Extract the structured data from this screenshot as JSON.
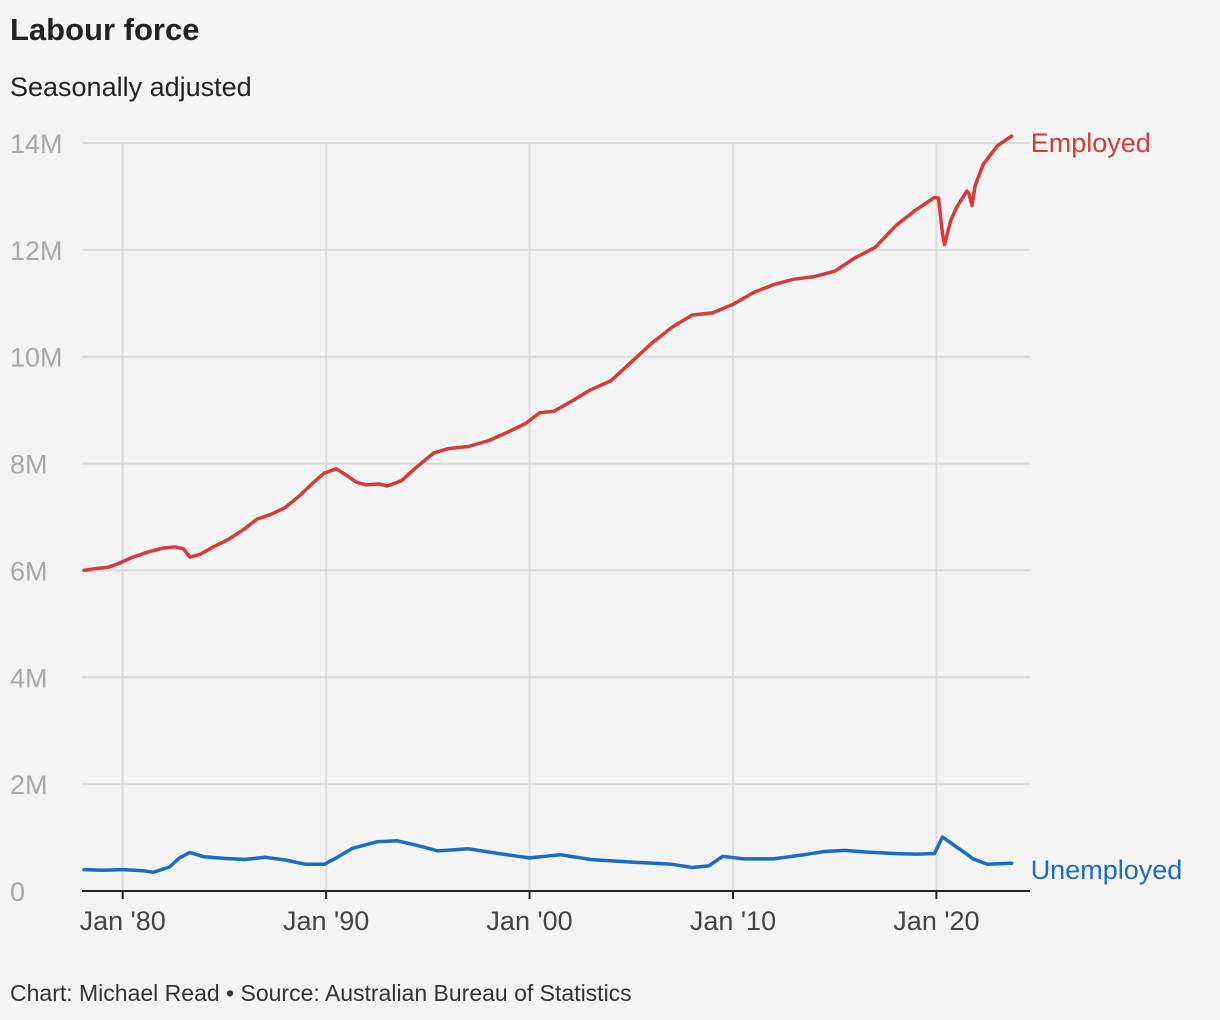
{
  "title": "Labour force",
  "subtitle": "Seasonally adjusted",
  "footer": "Chart: Michael Read • Source: Australian Bureau of Statistics",
  "chart_data": {
    "type": "line",
    "title": "Labour force",
    "subtitle": "Seasonally adjusted",
    "xlabel": "",
    "ylabel": "",
    "xlim": [
      1978.0,
      2024.6
    ],
    "ylim": [
      0,
      14000000
    ],
    "grid": true,
    "x_ticks": [
      {
        "value": 1980,
        "label": "Jan '80"
      },
      {
        "value": 1990,
        "label": "Jan '90"
      },
      {
        "value": 2000,
        "label": "Jan '00"
      },
      {
        "value": 2010,
        "label": "Jan '10"
      },
      {
        "value": 2020,
        "label": "Jan '20"
      }
    ],
    "y_ticks": [
      {
        "value": 0,
        "label": "0"
      },
      {
        "value": 2000000,
        "label": "2M"
      },
      {
        "value": 4000000,
        "label": "4M"
      },
      {
        "value": 6000000,
        "label": "6M"
      },
      {
        "value": 8000000,
        "label": "8M"
      },
      {
        "value": 10000000,
        "label": "10M"
      },
      {
        "value": 12000000,
        "label": "12M"
      },
      {
        "value": 14000000,
        "label": "14M"
      }
    ],
    "legend": "direct labels at line ends (right)",
    "series": [
      {
        "name": "Employed",
        "color": "#d63b35",
        "points": [
          [
            1978.1,
            6000000
          ],
          [
            1978.6,
            6030000
          ],
          [
            1979.3,
            6060000
          ],
          [
            1979.8,
            6130000
          ],
          [
            1980.5,
            6250000
          ],
          [
            1981.3,
            6350000
          ],
          [
            1982.0,
            6420000
          ],
          [
            1982.6,
            6440000
          ],
          [
            1983.0,
            6400000
          ],
          [
            1983.3,
            6250000
          ],
          [
            1983.8,
            6300000
          ],
          [
            1984.5,
            6450000
          ],
          [
            1985.2,
            6580000
          ],
          [
            1986.0,
            6780000
          ],
          [
            1986.6,
            6960000
          ],
          [
            1987.3,
            7050000
          ],
          [
            1988.0,
            7180000
          ],
          [
            1988.7,
            7400000
          ],
          [
            1989.3,
            7620000
          ],
          [
            1989.9,
            7820000
          ],
          [
            1990.5,
            7900000
          ],
          [
            1991.0,
            7780000
          ],
          [
            1991.5,
            7650000
          ],
          [
            1992.0,
            7600000
          ],
          [
            1992.6,
            7620000
          ],
          [
            1993.0,
            7580000
          ],
          [
            1993.7,
            7680000
          ],
          [
            1994.5,
            7950000
          ],
          [
            1995.3,
            8200000
          ],
          [
            1996.0,
            8280000
          ],
          [
            1997.0,
            8320000
          ],
          [
            1998.0,
            8430000
          ],
          [
            1999.0,
            8600000
          ],
          [
            1999.8,
            8750000
          ],
          [
            2000.5,
            8950000
          ],
          [
            2001.2,
            8980000
          ],
          [
            2002.0,
            9150000
          ],
          [
            2003.0,
            9380000
          ],
          [
            2004.0,
            9550000
          ],
          [
            2005.0,
            9900000
          ],
          [
            2006.0,
            10250000
          ],
          [
            2007.0,
            10550000
          ],
          [
            2008.0,
            10780000
          ],
          [
            2009.0,
            10820000
          ],
          [
            2010.0,
            10980000
          ],
          [
            2011.0,
            11200000
          ],
          [
            2012.0,
            11350000
          ],
          [
            2013.0,
            11450000
          ],
          [
            2014.0,
            11500000
          ],
          [
            2015.0,
            11600000
          ],
          [
            2016.0,
            11850000
          ],
          [
            2017.0,
            12050000
          ],
          [
            2018.0,
            12450000
          ],
          [
            2019.0,
            12750000
          ],
          [
            2019.9,
            12980000
          ],
          [
            2020.1,
            12970000
          ],
          [
            2020.3,
            12300000
          ],
          [
            2020.4,
            12100000
          ],
          [
            2020.7,
            12550000
          ],
          [
            2021.0,
            12800000
          ],
          [
            2021.5,
            13100000
          ],
          [
            2021.6,
            13050000
          ],
          [
            2021.75,
            12830000
          ],
          [
            2021.9,
            13200000
          ],
          [
            2022.3,
            13600000
          ],
          [
            2023.0,
            13950000
          ],
          [
            2023.7,
            14130000
          ]
        ]
      },
      {
        "name": "Unemployed",
        "color": "#1a6cc4",
        "points": [
          [
            1978.1,
            400000
          ],
          [
            1979.0,
            390000
          ],
          [
            1980.0,
            400000
          ],
          [
            1981.0,
            380000
          ],
          [
            1981.5,
            350000
          ],
          [
            1982.3,
            450000
          ],
          [
            1982.8,
            620000
          ],
          [
            1983.3,
            720000
          ],
          [
            1984.0,
            640000
          ],
          [
            1985.0,
            610000
          ],
          [
            1986.0,
            590000
          ],
          [
            1987.0,
            630000
          ],
          [
            1988.0,
            580000
          ],
          [
            1989.0,
            500000
          ],
          [
            1989.9,
            500000
          ],
          [
            1990.5,
            620000
          ],
          [
            1991.3,
            800000
          ],
          [
            1992.5,
            920000
          ],
          [
            1993.5,
            940000
          ],
          [
            1994.5,
            850000
          ],
          [
            1995.5,
            750000
          ],
          [
            1997.0,
            790000
          ],
          [
            1998.5,
            700000
          ],
          [
            2000.0,
            620000
          ],
          [
            2001.5,
            680000
          ],
          [
            2003.0,
            590000
          ],
          [
            2005.0,
            540000
          ],
          [
            2007.0,
            500000
          ],
          [
            2008.0,
            440000
          ],
          [
            2008.8,
            470000
          ],
          [
            2009.5,
            650000
          ],
          [
            2010.5,
            600000
          ],
          [
            2012.0,
            600000
          ],
          [
            2013.5,
            680000
          ],
          [
            2014.5,
            740000
          ],
          [
            2015.5,
            760000
          ],
          [
            2016.5,
            730000
          ],
          [
            2018.0,
            700000
          ],
          [
            2019.0,
            690000
          ],
          [
            2019.9,
            700000
          ],
          [
            2020.3,
            1010000
          ],
          [
            2020.6,
            930000
          ],
          [
            2021.0,
            820000
          ],
          [
            2021.5,
            690000
          ],
          [
            2021.8,
            600000
          ],
          [
            2022.5,
            500000
          ],
          [
            2023.0,
            510000
          ],
          [
            2023.7,
            520000
          ]
        ]
      }
    ]
  }
}
